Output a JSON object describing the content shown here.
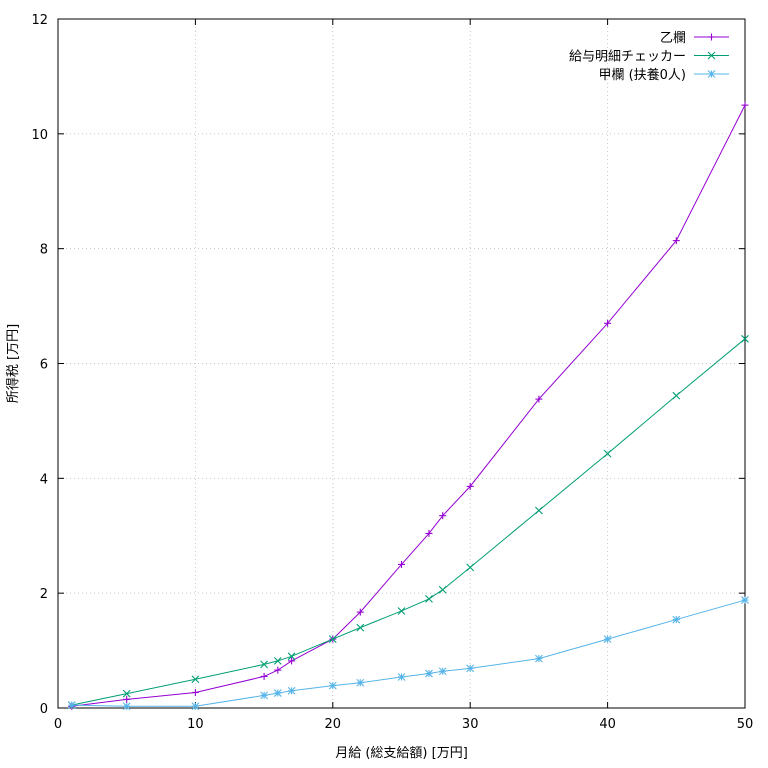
{
  "chart_data": {
    "type": "line",
    "xlabel": "月給 (総支給額) [万円]",
    "ylabel": "所得税 [万円]",
    "xlim": [
      0,
      50
    ],
    "ylim": [
      0,
      12
    ],
    "x_ticks": [
      0,
      10,
      20,
      30,
      40,
      50
    ],
    "y_ticks": [
      0,
      2,
      4,
      6,
      8,
      10,
      12
    ],
    "grid": true,
    "legend_position": "top-right",
    "series": [
      {
        "name": "乙欄",
        "color": "#9400d3",
        "marker": "plus",
        "x": [
          1,
          5,
          10,
          15,
          16,
          17,
          20,
          22,
          25,
          27,
          28,
          30,
          35,
          40,
          45,
          50
        ],
        "y": [
          0.03,
          0.15,
          0.27,
          0.55,
          0.66,
          0.82,
          1.2,
          1.67,
          2.5,
          3.04,
          3.35,
          3.86,
          5.38,
          6.7,
          8.14,
          10.5
        ]
      },
      {
        "name": "給与明細チェッカー",
        "color": "#009e73",
        "marker": "cross",
        "x": [
          1,
          5,
          10,
          15,
          16,
          17,
          20,
          22,
          25,
          27,
          28,
          30,
          35,
          40,
          45,
          50
        ],
        "y": [
          0.05,
          0.25,
          0.5,
          0.76,
          0.82,
          0.9,
          1.2,
          1.4,
          1.69,
          1.9,
          2.06,
          2.45,
          3.44,
          4.43,
          5.44,
          6.43
        ]
      },
      {
        "name": "甲欄 (扶養0人)",
        "color": "#56b4e9",
        "marker": "star",
        "x": [
          1,
          5,
          10,
          15,
          16,
          17,
          20,
          22,
          25,
          27,
          28,
          30,
          35,
          40,
          45,
          50
        ],
        "y": [
          0.05,
          0.03,
          0.03,
          0.22,
          0.26,
          0.3,
          0.39,
          0.44,
          0.54,
          0.6,
          0.64,
          0.69,
          0.86,
          1.2,
          1.54,
          1.88
        ]
      }
    ]
  }
}
